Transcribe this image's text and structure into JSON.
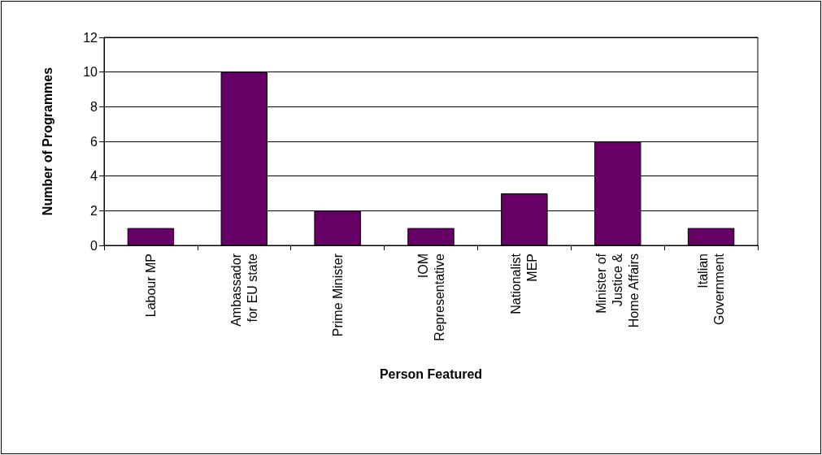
{
  "chart_data": {
    "type": "bar",
    "xlabel": "Person Featured",
    "ylabel": "Number of Programmes",
    "categories": [
      "Labour MP",
      "Ambassador\nfor EU state",
      "Prime Minister",
      "IOM\nRepresentative",
      "Nationalist\nMEP",
      "Minister of\nJustice &\nHome Affairs",
      "Italian\nGovernment"
    ],
    "values": [
      1,
      10,
      2,
      1,
      3,
      6,
      1
    ],
    "color": "#660066",
    "ylim": [
      0,
      12
    ],
    "yticks": [
      0,
      2,
      4,
      6,
      8,
      10,
      12
    ],
    "grid": "y"
  }
}
